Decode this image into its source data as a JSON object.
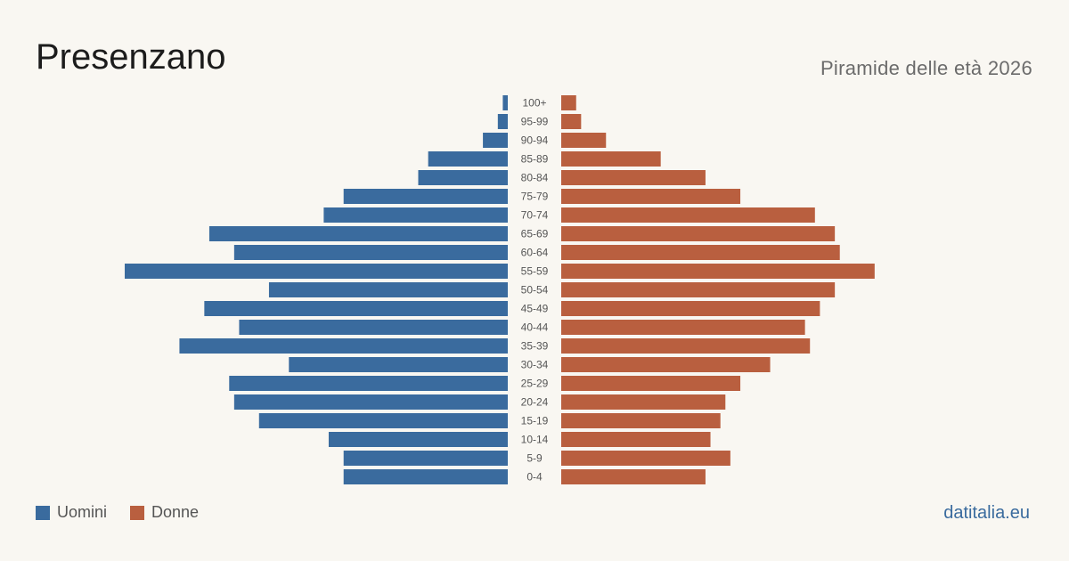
{
  "title": "Presenzano",
  "subtitle": "Piramide delle età 2026",
  "source": "datitalia.eu",
  "chart_data": {
    "type": "bar",
    "orientation": "horizontal-pyramid",
    "categories": [
      "100+",
      "95-99",
      "90-94",
      "85-89",
      "80-84",
      "75-79",
      "70-74",
      "65-69",
      "60-64",
      "55-59",
      "50-54",
      "45-49",
      "40-44",
      "35-39",
      "30-34",
      "25-29",
      "20-24",
      "15-19",
      "10-14",
      "5-9",
      "0-4"
    ],
    "series": [
      {
        "name": "Uomini",
        "color": "#3a6b9e",
        "side": "left",
        "values": [
          1,
          2,
          5,
          16,
          18,
          33,
          37,
          60,
          55,
          77,
          48,
          61,
          54,
          66,
          44,
          56,
          55,
          50,
          36,
          33,
          33
        ]
      },
      {
        "name": "Donne",
        "color": "#b95f3f",
        "side": "right",
        "values": [
          3,
          4,
          9,
          20,
          29,
          36,
          51,
          55,
          56,
          63,
          55,
          52,
          49,
          50,
          42,
          36,
          33,
          32,
          30,
          34,
          29
        ]
      }
    ],
    "xmax": 77,
    "legend": "bottom-left"
  }
}
